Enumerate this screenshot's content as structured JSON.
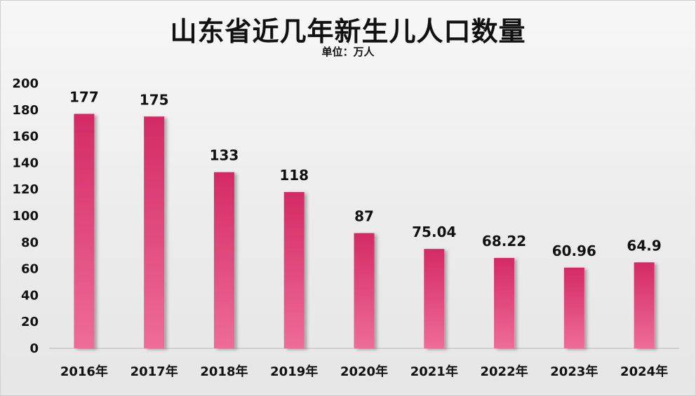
{
  "chart_data": {
    "type": "bar",
    "title": "山东省近几年新生儿人口数量",
    "subtitle": "单位：万人",
    "categories": [
      "2016年",
      "2017年",
      "2018年",
      "2019年",
      "2020年",
      "2021年",
      "2022年",
      "2023年",
      "2024年"
    ],
    "values": [
      177,
      175,
      133,
      118,
      87,
      75.04,
      68.22,
      60.96,
      64.9
    ],
    "data_labels": [
      "177",
      "175",
      "133",
      "118",
      "87",
      "75.04",
      "68.22",
      "60.96",
      "64.9"
    ],
    "ylim": [
      0,
      200
    ],
    "yticks": [
      0,
      20,
      40,
      60,
      80,
      100,
      120,
      140,
      160,
      180,
      200
    ],
    "grid": false,
    "legend": "none",
    "colors": {
      "bar_top": "#d42a64",
      "bar_bottom": "#ee6c98",
      "text": "#111111",
      "axis": "#c8c8c8"
    }
  }
}
